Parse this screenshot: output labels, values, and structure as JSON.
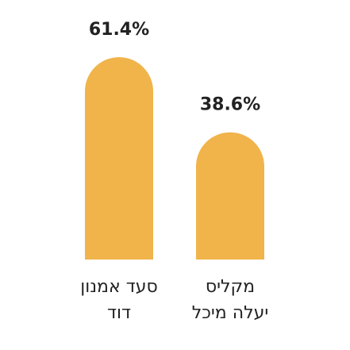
{
  "chart_data": {
    "type": "bar",
    "categories": [
      [
        "סעד אמנון",
        "דוד"
      ],
      [
        "מקליס",
        "יעלה מיכל"
      ]
    ],
    "values": [
      61.4,
      38.6
    ],
    "value_labels": [
      "61.4%",
      "38.6%"
    ],
    "color": "#f0b44a"
  }
}
